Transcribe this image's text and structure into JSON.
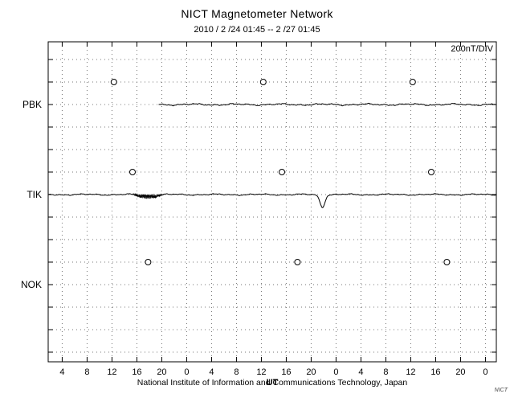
{
  "chart_data": {
    "type": "line",
    "title": "NICT Magnetometer Network",
    "date_range": "2010 / 2 /24  01:45 --  2 /27  01:45",
    "scale_label": "200nT/DIV",
    "scale_per_division_nT": 200,
    "xlabel": "UT",
    "footer": "National Institute of Information and Communications Technology, Japan",
    "corner_logo": "NICT",
    "grid": true,
    "legend": "none",
    "time_range_hours": [
      1.75,
      73.75
    ],
    "x_ticks": {
      "hours": [
        4,
        8,
        12,
        16,
        20,
        24,
        28,
        32,
        36,
        40,
        44,
        48,
        52,
        56,
        60,
        64,
        68,
        72
      ],
      "labels": [
        "4",
        "8",
        "12",
        "16",
        "20",
        "0",
        "4",
        "8",
        "12",
        "16",
        "20",
        "0",
        "4",
        "8",
        "12",
        "16",
        "20",
        "0"
      ]
    },
    "y_rows": 14,
    "stations": [
      {
        "name": "PBK",
        "row": 2,
        "marker_hours": [
          12.3,
          36.3,
          60.3
        ]
      },
      {
        "name": "TIK",
        "row": 6,
        "marker_hours": [
          15.3,
          39.3,
          63.3
        ]
      },
      {
        "name": "NOK",
        "row": 10,
        "marker_hours": [
          17.8,
          41.8,
          65.8
        ]
      }
    ],
    "series": [
      {
        "station": "PBK",
        "start_hour": 19.5,
        "end_hour": 73.75,
        "noise_amp_nT": 5,
        "features": []
      },
      {
        "station": "TIK",
        "start_hour": 1.75,
        "end_hour": 73.75,
        "noise_amp_nT": 4,
        "features": [
          {
            "type": "burst",
            "start_hour": 15.1,
            "end_hour": 20.4,
            "amp_nT": 22
          },
          {
            "type": "dip",
            "center_hour": 45.8,
            "sigma_hours": 0.4,
            "depth_nT": 55
          }
        ]
      }
    ]
  }
}
